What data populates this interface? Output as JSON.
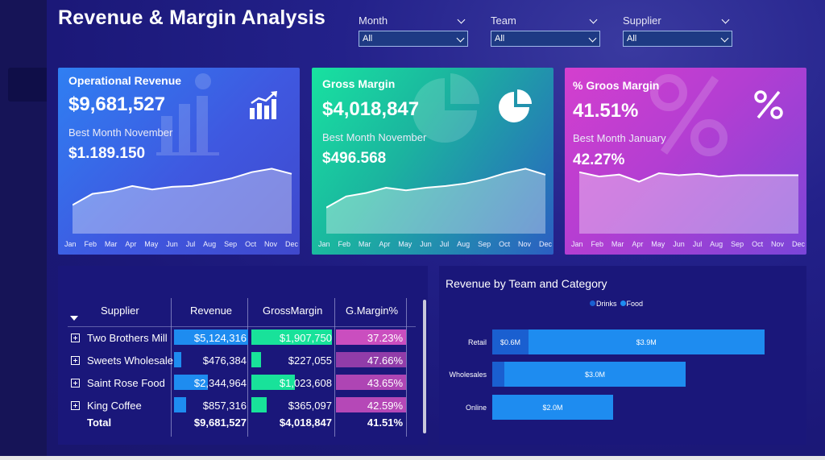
{
  "dashboard": {
    "title": "Revenue & Margin Analysis"
  },
  "filters": [
    {
      "label": "Month",
      "value": "All"
    },
    {
      "label": "Team",
      "value": "All"
    },
    {
      "label": "Supplier",
      "value": "All"
    }
  ],
  "cards": {
    "operational_revenue": {
      "title": "Operational Revenue",
      "value": "$9,681,527",
      "best_month_label": "Best Month November",
      "best_month_value": "$1.189.150",
      "icon": "bar-chart-icon",
      "color_start": "#2f7ff2",
      "color_end": "#3f48cc"
    },
    "gross_margin": {
      "title": "Gross Margin",
      "value": "$4,018,847",
      "best_month_label": "Best Month November",
      "best_month_value": "$496.568",
      "icon": "pie-chart-icon",
      "color_start": "#18e2a0",
      "color_end": "#2b5ec2"
    },
    "gross_margin_pct": {
      "title": "% Groos Margin",
      "value": "41.51%",
      "best_month_label": "Best Month January",
      "best_month_value": "42.27%",
      "icon": "percent-icon",
      "color_start": "#d43fce",
      "color_end": "#7a45d8"
    }
  },
  "months": [
    "Jan",
    "Feb",
    "Mar",
    "Apr",
    "May",
    "Jun",
    "Jul",
    "Aug",
    "Sep",
    "Oct",
    "Nov",
    "Dec"
  ],
  "table": {
    "headers": {
      "supplier": "Supplier",
      "revenue": "Revenue",
      "gross_margin": "GrossMargin",
      "gm_pct": "G.Margin%"
    },
    "rows": [
      {
        "supplier": "Two Brothers Mill",
        "revenue": "$5,124,316",
        "gross_margin": "$1,907,750",
        "gm_pct": "37.23%",
        "rev_frac": 1.0,
        "gm_frac": 1.0,
        "pct_shade": 0.55
      },
      {
        "supplier": "Sweets Wholesale",
        "revenue": "$476,384",
        "gross_margin": "$227,055",
        "gm_pct": "47.66%",
        "rev_frac": 0.093,
        "gm_frac": 0.119,
        "pct_shade": 0.15
      },
      {
        "supplier": "Saint Rose Food",
        "revenue": "$2,344,964",
        "gross_margin": "$1,023,608",
        "gm_pct": "43.65%",
        "rev_frac": 0.458,
        "gm_frac": 0.537,
        "pct_shade": 0.35
      },
      {
        "supplier": "King Coffee",
        "revenue": "$857,316",
        "gross_margin": "$365,097",
        "gm_pct": "42.59%",
        "rev_frac": 0.167,
        "gm_frac": 0.191,
        "pct_shade": 0.4
      }
    ],
    "total": {
      "label": "Total",
      "revenue": "$9,681,527",
      "gross_margin": "$4,018,847",
      "gm_pct": "41.51%"
    },
    "colors": {
      "revenue_bar": "#1e8cf0",
      "gm_bar": "#18e29a",
      "pct_cell": "#cc4fc0"
    }
  },
  "chart_data": [
    {
      "type": "area",
      "x": [
        "Jan",
        "Feb",
        "Mar",
        "Apr",
        "May",
        "Jun",
        "Jul",
        "Aug",
        "Sep",
        "Oct",
        "Nov",
        "Dec"
      ],
      "values": [
        0.58,
        0.71,
        0.74,
        0.8,
        0.76,
        0.79,
        0.8,
        0.84,
        0.89,
        0.96,
        1.0,
        0.94
      ],
      "series_label": "Operational Revenue"
    },
    {
      "type": "area",
      "x": [
        "Jan",
        "Feb",
        "Mar",
        "Apr",
        "May",
        "Jun",
        "Jul",
        "Aug",
        "Sep",
        "Oct",
        "Nov",
        "Dec"
      ],
      "values": [
        0.55,
        0.68,
        0.72,
        0.78,
        0.75,
        0.78,
        0.8,
        0.83,
        0.88,
        0.95,
        1.0,
        0.93
      ],
      "series_label": "Gross Margin"
    },
    {
      "type": "area",
      "x": [
        "Jan",
        "Feb",
        "Mar",
        "Apr",
        "May",
        "Jun",
        "Jul",
        "Aug",
        "Sep",
        "Oct",
        "Nov",
        "Dec"
      ],
      "values": [
        42.27,
        41.6,
        41.9,
        40.8,
        42.1,
        41.8,
        42.0,
        41.6,
        41.8,
        41.8,
        41.8,
        41.8
      ],
      "series_label": "% Groos Margin"
    },
    {
      "type": "bar",
      "title": "Revenue by Team and Category",
      "orientation": "horizontal",
      "stacked": true,
      "legend_position": "top-center",
      "categories": [
        "Retail",
        "Wholesales",
        "Online"
      ],
      "series": [
        {
          "name": "Drinks",
          "values": [
            0.6,
            0.2,
            0.0
          ],
          "labels": [
            "$0.6M",
            "",
            ""
          ],
          "color": "#1a5fd0"
        },
        {
          "name": "Food",
          "values": [
            3.9,
            3.0,
            2.0
          ],
          "labels": [
            "$3.9M",
            "$3.0M",
            "$2.0M"
          ],
          "color": "#1e8cf0"
        }
      ],
      "xlim": [
        0,
        4.5
      ]
    }
  ]
}
